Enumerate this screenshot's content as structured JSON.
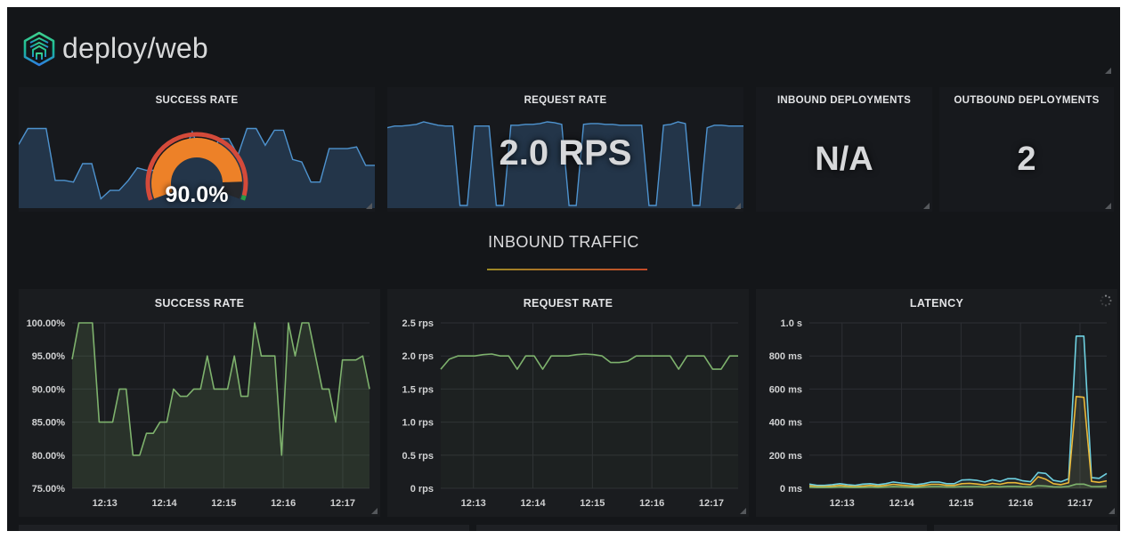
{
  "header": {
    "title": "deploy/web"
  },
  "section": {
    "title": "INBOUND TRAFFIC"
  },
  "stats": [
    {
      "title": "SUCCESS RATE",
      "value": "90.0%",
      "value_pct": 90
    },
    {
      "title": "REQUEST RATE",
      "value": "2.0 RPS"
    },
    {
      "title": "INBOUND DEPLOYMENTS",
      "value": "N/A"
    },
    {
      "title": "OUTBOUND DEPLOYMENTS",
      "value": "2"
    }
  ],
  "colors": {
    "dashboard_bg": "#141619",
    "panel_bg": "#1a1c1f",
    "gauge_value_orange": "#ed8128",
    "gauge_threshold_red": "#d44a3a",
    "gauge_threshold_green": "#299c46",
    "gauge_empty": "#26282c",
    "sparkline_line": "#4e93cf",
    "sparkline_fill": "rgba(70,125,190,0.28)",
    "series_green": "#7eb26d",
    "series_cyan": "#6ed0e0",
    "series_yellow": "#eab839",
    "grid": "#2d2f34",
    "axis_text": "#d0d1d2",
    "underline_left": "#9c8a26",
    "underline_right": "#c44a28"
  },
  "chart_data": [
    {
      "id": "success-rate-spark",
      "type": "area",
      "title": "SUCCESS RATE sparkline",
      "line_color": "#4e93cf",
      "fill_color": "rgba(70,125,190,0.28)",
      "values_norm": [
        0.73,
        0.92,
        0.92,
        0.92,
        0.3,
        0.3,
        0.28,
        0.5,
        0.5,
        0.08,
        0.18,
        0.18,
        0.3,
        0.45,
        0.42,
        0.42,
        0.5,
        0.62,
        0.6,
        0.88,
        0.6,
        0.6,
        0.8,
        0.8,
        0.6,
        0.92,
        0.92,
        0.72,
        0.9,
        0.9,
        0.55,
        0.52,
        0.28,
        0.28,
        0.68,
        0.68,
        0.68,
        0.7,
        0.48,
        0.48
      ]
    },
    {
      "id": "request-rate-spark",
      "type": "area",
      "title": "REQUEST RATE sparkline",
      "line_color": "#4e93cf",
      "fill_color": "rgba(70,125,190,0.28)",
      "values_norm": [
        0.93,
        0.95,
        0.95,
        0.96,
        0.97,
        1.0,
        0.98,
        0.96,
        0.95,
        0.95,
        0,
        0,
        0.95,
        0.95,
        0.95,
        0,
        0,
        0.96,
        0.96,
        0.97,
        0.97,
        0.98,
        1.0,
        0.99,
        0.97,
        0,
        0,
        0.97,
        0.98,
        0.98,
        0.97,
        0.97,
        0.96,
        0.96,
        0.96,
        0.96,
        0,
        0,
        0.96,
        0.97,
        1.0,
        0.98,
        0,
        0,
        0.93,
        0.96,
        0.96,
        0.95,
        0.95,
        0.95
      ]
    },
    {
      "id": "success-rate",
      "type": "line",
      "title": "SUCCESS RATE",
      "xlabel": "",
      "ylabel": "",
      "x_ticks": [
        "12:13",
        "12:14",
        "12:15",
        "12:16",
        "12:17"
      ],
      "x_tick_pos": [
        0.11,
        0.31,
        0.51,
        0.71,
        0.91
      ],
      "y_ticks": [
        "75.00%",
        "80.00%",
        "85.00%",
        "90.00%",
        "95.00%",
        "100.00%"
      ],
      "ylim": [
        75,
        100
      ],
      "grid": true,
      "legend": "none",
      "series": [
        {
          "name": "success-rate",
          "color": "#7eb26d",
          "fill_opacity": 0.15,
          "values": [
            94.5,
            100,
            100,
            100,
            85,
            85,
            85,
            90,
            90,
            80,
            80,
            83.3,
            83.3,
            85,
            85,
            90,
            88.9,
            88.9,
            90,
            90,
            95,
            90,
            90,
            90,
            95,
            88.9,
            88.9,
            100,
            95,
            95,
            95,
            80,
            100,
            95,
            100,
            100,
            95,
            90,
            90,
            85,
            94.4,
            94.4,
            94.4,
            95,
            90
          ]
        }
      ]
    },
    {
      "id": "request-rate",
      "type": "line",
      "title": "REQUEST RATE",
      "xlabel": "",
      "ylabel": "",
      "x_ticks": [
        "12:13",
        "12:14",
        "12:15",
        "12:16",
        "12:17"
      ],
      "x_tick_pos": [
        0.11,
        0.31,
        0.51,
        0.71,
        0.91
      ],
      "y_ticks": [
        "0 rps",
        "0.5 rps",
        "1.0 rps",
        "1.5 rps",
        "2.0 rps",
        "2.5 rps"
      ],
      "ylim": [
        0,
        2.5
      ],
      "grid": true,
      "legend": "none",
      "series": [
        {
          "name": "request-rate",
          "color": "#7eb26d",
          "fill_opacity": 0.04,
          "values": [
            1.8,
            1.95,
            2.0,
            2.0,
            2.0,
            2.02,
            2.03,
            2.0,
            2.0,
            1.8,
            2.0,
            2.0,
            1.8,
            2.0,
            2.0,
            2.0,
            2.02,
            2.03,
            2.02,
            2.0,
            1.9,
            1.9,
            1.92,
            2.0,
            2.0,
            2.0,
            2.0,
            2.0,
            1.8,
            2.0,
            2.0,
            2.0,
            1.8,
            1.8,
            2.0,
            2.0
          ]
        }
      ]
    },
    {
      "id": "latency",
      "type": "line",
      "title": "LATENCY",
      "xlabel": "",
      "ylabel": "",
      "x_ticks": [
        "12:13",
        "12:14",
        "12:15",
        "12:16",
        "12:17"
      ],
      "x_tick_pos": [
        0.11,
        0.31,
        0.51,
        0.71,
        0.91
      ],
      "y_ticks": [
        "0 ms",
        "200 ms",
        "400 ms",
        "600 ms",
        "800 ms",
        "1.0 s"
      ],
      "ylim": [
        0,
        1000
      ],
      "grid": true,
      "legend": "none",
      "series": [
        {
          "name": "latency-upper",
          "color": "#6ed0e0",
          "fill_opacity": 0.08,
          "values": [
            25,
            18,
            18,
            22,
            28,
            22,
            18,
            25,
            28,
            22,
            28,
            38,
            32,
            28,
            22,
            28,
            38,
            38,
            28,
            28,
            50,
            52,
            48,
            38,
            52,
            42,
            58,
            58,
            45,
            40,
            95,
            90,
            48,
            40,
            58,
            920,
            920,
            65,
            60,
            90
          ]
        },
        {
          "name": "latency-mid",
          "color": "#eab839",
          "fill_opacity": 0.08,
          "values": [
            15,
            10,
            10,
            13,
            18,
            13,
            10,
            14,
            18,
            13,
            18,
            24,
            20,
            16,
            13,
            18,
            24,
            24,
            18,
            18,
            28,
            30,
            26,
            20,
            30,
            24,
            34,
            34,
            26,
            22,
            70,
            55,
            28,
            22,
            34,
            555,
            550,
            42,
            36,
            45
          ]
        },
        {
          "name": "latency-lower",
          "color": "#7eb26d",
          "fill_opacity": 0.12,
          "values": [
            7,
            5,
            5,
            6,
            8,
            6,
            5,
            6,
            8,
            6,
            8,
            10,
            9,
            7,
            6,
            8,
            10,
            10,
            8,
            8,
            10,
            11,
            10,
            8,
            11,
            9,
            12,
            12,
            9,
            8,
            16,
            14,
            9,
            8,
            12,
            25,
            25,
            11,
            10,
            13
          ]
        }
      ]
    }
  ]
}
